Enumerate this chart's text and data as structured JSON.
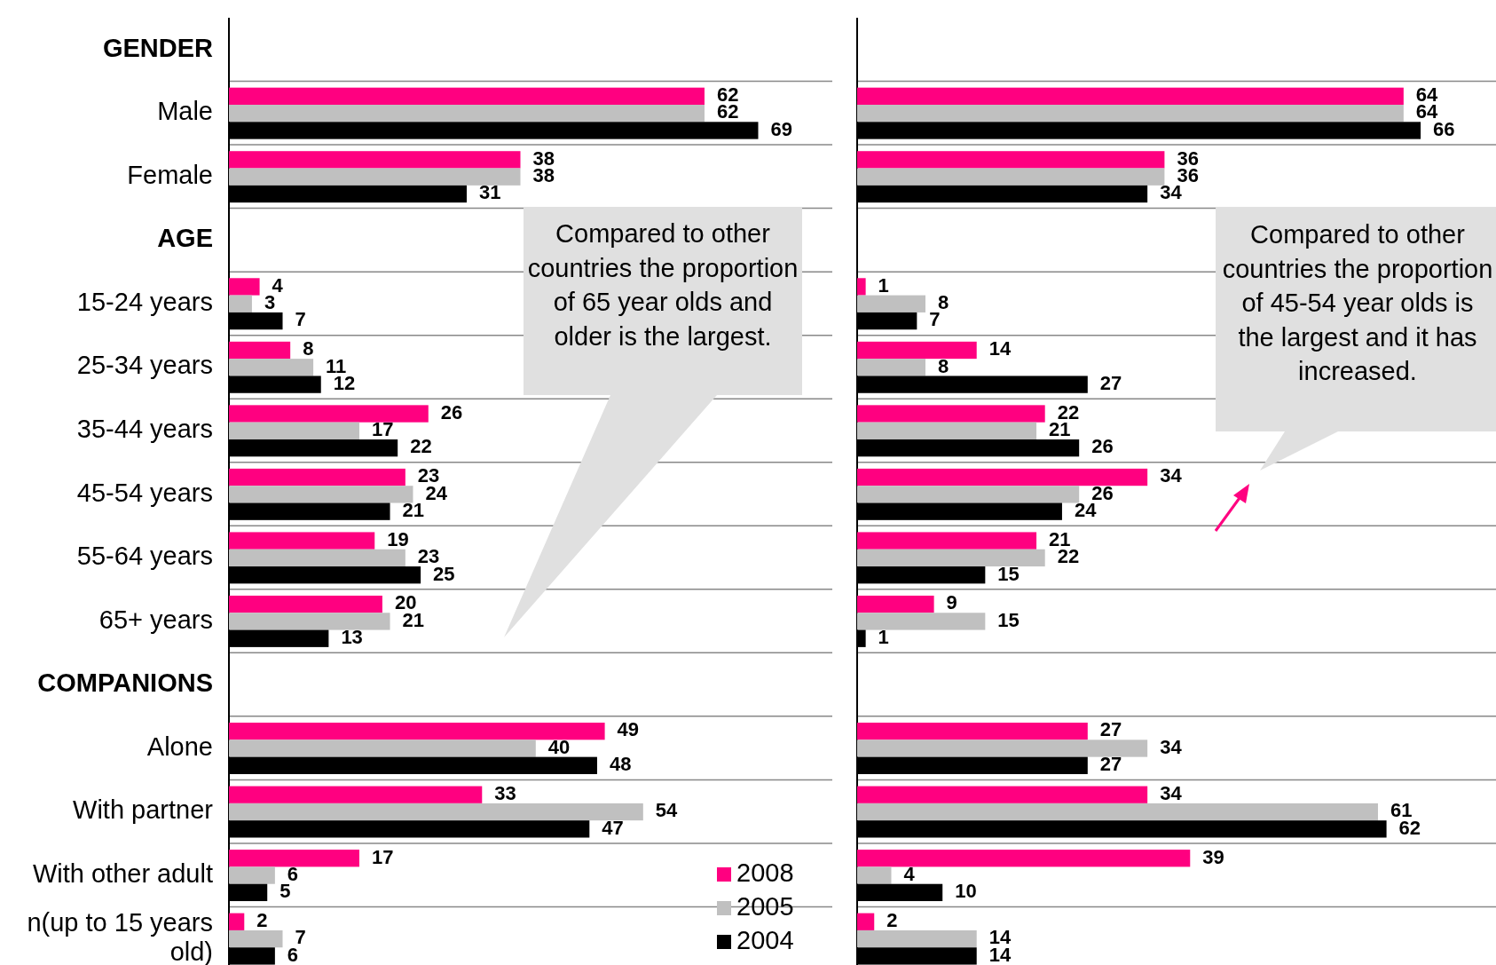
{
  "chart_data": [
    {
      "type": "bar",
      "orientation": "horizontal",
      "categories": [
        "GENDER",
        "Male",
        "Female",
        "AGE",
        "15-24 years",
        "25-34 years",
        "35-44 years",
        "45-54 years",
        "55-64 years",
        "65+ years",
        "COMPANIONS",
        "Alone",
        "With partner",
        "With other adult",
        "n(up to 15 years old)"
      ],
      "series": [
        {
          "name": "2008",
          "color": "#ff0080",
          "values": [
            null,
            62,
            38,
            null,
            4,
            8,
            26,
            23,
            19,
            20,
            null,
            49,
            33,
            17,
            2
          ]
        },
        {
          "name": "2005",
          "color": "#c0c0c0",
          "values": [
            null,
            62,
            38,
            null,
            3,
            11,
            17,
            24,
            23,
            21,
            null,
            40,
            54,
            6,
            7
          ]
        },
        {
          "name": "2004",
          "color": "#000000",
          "values": [
            null,
            69,
            31,
            null,
            7,
            12,
            22,
            21,
            25,
            13,
            null,
            48,
            47,
            5,
            6
          ]
        }
      ],
      "data_labels": true,
      "legend": "bottom right",
      "grid": "y",
      "tick_labels": "y",
      "annotations": [
        "Compared to other countries the proportion of 65 year olds and older is the largest."
      ]
    },
    {
      "type": "bar",
      "orientation": "horizontal",
      "categories": [
        null,
        null,
        null,
        null,
        null,
        null,
        null,
        null,
        null,
        null,
        null,
        null,
        null,
        null,
        null
      ],
      "series": [
        {
          "color": "#ff0080",
          "values": [
            null,
            64,
            36,
            null,
            1,
            14,
            22,
            34,
            21,
            9,
            null,
            27,
            34,
            39,
            2
          ]
        },
        {
          "color": "#c0c0c0",
          "values": [
            null,
            64,
            36,
            null,
            8,
            8,
            21,
            26,
            22,
            15,
            null,
            34,
            61,
            4,
            14
          ]
        },
        {
          "color": "#000000",
          "values": [
            null,
            66,
            34,
            null,
            7,
            27,
            26,
            24,
            15,
            1,
            null,
            27,
            62,
            10,
            14
          ]
        }
      ],
      "data_labels": true,
      "legend": false,
      "grid": "y",
      "tick_labels": false,
      "annotations": [
        "Compared to other countries the proportion  of 45-54 year olds is the largest and it has increased."
      ]
    }
  ]
}
